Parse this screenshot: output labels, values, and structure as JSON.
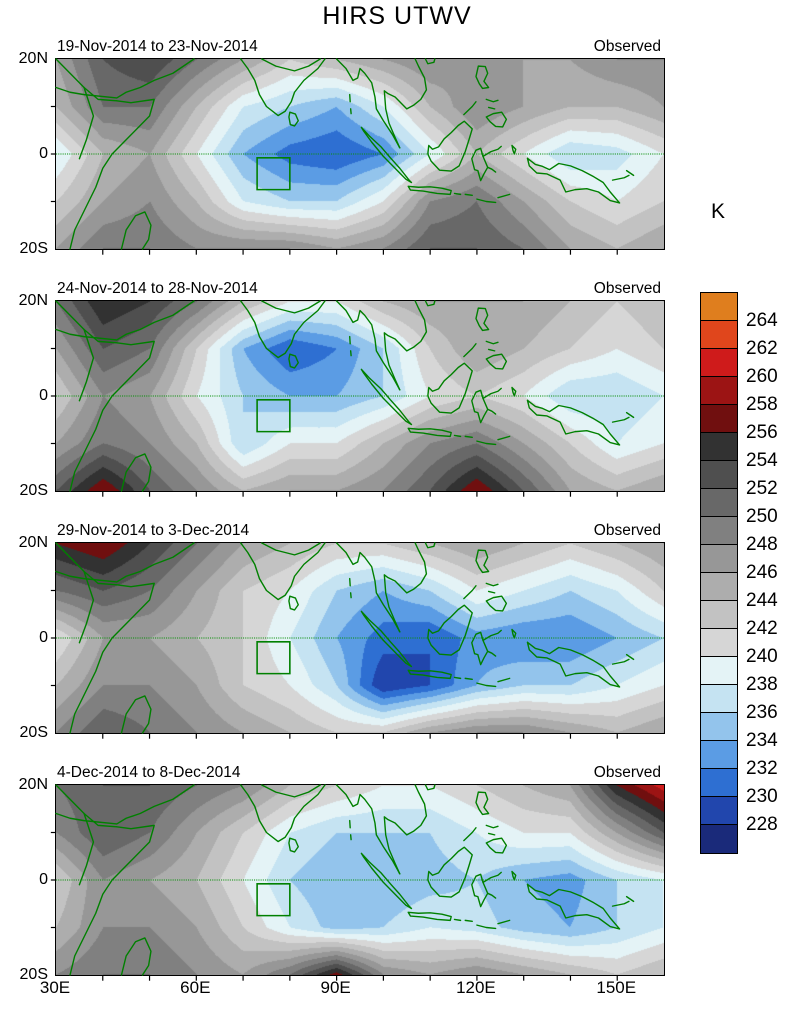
{
  "title": "HIRS UTWV",
  "chart_data": {
    "type": "heatmap",
    "title": "HIRS UTWV",
    "unit": "K",
    "lon_range": [
      30,
      160
    ],
    "lat_range": [
      -20,
      20
    ],
    "x": {
      "ticks": [
        30,
        60,
        90,
        120,
        150
      ],
      "tick_labels": [
        "30E",
        "60E",
        "90E",
        "120E",
        "150E"
      ]
    },
    "y": {
      "tick_labels": [
        "20N",
        "0",
        "20S"
      ]
    },
    "grid_lons": [
      30,
      40,
      50,
      60,
      70,
      80,
      90,
      100,
      110,
      120,
      130,
      140,
      150,
      160
    ],
    "grid_lats": [
      20,
      10,
      0,
      -10,
      -20
    ],
    "levels": [
      228,
      230,
      232,
      234,
      236,
      238,
      240,
      242,
      244,
      246,
      248,
      250,
      252,
      254,
      256,
      258,
      260,
      262,
      264
    ],
    "colors": [
      "#1a2a7a",
      "#2146ad",
      "#2e6fd2",
      "#5b9ce4",
      "#93c4ec",
      "#c5e3f2",
      "#e4f3f6",
      "#d6d6d6",
      "#c2c2c2",
      "#adadad",
      "#979797",
      "#808080",
      "#686868",
      "#4f4f4f",
      "#323232",
      "#700f0f",
      "#9c1414",
      "#cf1b1b",
      "#e0461c",
      "#df7e1e"
    ],
    "colorbar_tick_labels": [
      "264",
      "262",
      "260",
      "258",
      "256",
      "254",
      "252",
      "250",
      "248",
      "246",
      "244",
      "242",
      "240",
      "238",
      "236",
      "234",
      "232",
      "230",
      "228"
    ],
    "highlight_box": {
      "lon_min": 73,
      "lon_max": 80,
      "lat_min": -7.5,
      "lat_max": -0.8
    },
    "panels": [
      {
        "date_label": "19-Nov-2014 to 23-Nov-2014",
        "source_label": "Observed",
        "values": [
          [
            246,
            252,
            254,
            250,
            246,
            242,
            244,
            246,
            248,
            246,
            246,
            246,
            248,
            248
          ],
          [
            244,
            250,
            250,
            244,
            238,
            236,
            234,
            238,
            244,
            248,
            246,
            244,
            244,
            246
          ],
          [
            238,
            244,
            246,
            240,
            234,
            231,
            230,
            232,
            238,
            244,
            240,
            236,
            237,
            240
          ],
          [
            242,
            246,
            248,
            244,
            238,
            236,
            236,
            240,
            248,
            250,
            246,
            242,
            240,
            242
          ],
          [
            246,
            250,
            250,
            248,
            248,
            248,
            246,
            248,
            252,
            252,
            250,
            246,
            244,
            246
          ]
        ]
      },
      {
        "date_label": "24-Nov-2014 to 28-Nov-2014",
        "source_label": "Observed",
        "values": [
          [
            250,
            256,
            254,
            250,
            244,
            240,
            240,
            244,
            246,
            246,
            246,
            244,
            242,
            244
          ],
          [
            246,
            252,
            250,
            242,
            234,
            230,
            232,
            236,
            242,
            246,
            244,
            242,
            240,
            242
          ],
          [
            242,
            248,
            246,
            240,
            236,
            234,
            234,
            236,
            240,
            242,
            240,
            236,
            236,
            238
          ],
          [
            246,
            250,
            248,
            244,
            236,
            240,
            240,
            244,
            248,
            250,
            246,
            242,
            238,
            240
          ],
          [
            252,
            258,
            252,
            248,
            244,
            246,
            246,
            248,
            252,
            258,
            252,
            246,
            244,
            246
          ]
        ]
      },
      {
        "date_label": "29-Nov-2014 to 3-Dec-2014",
        "source_label": "Observed",
        "values": [
          [
            256,
            258,
            254,
            250,
            246,
            244,
            242,
            242,
            244,
            246,
            244,
            242,
            244,
            246
          ],
          [
            250,
            252,
            250,
            246,
            242,
            240,
            236,
            234,
            236,
            240,
            238,
            236,
            238,
            242
          ],
          [
            240,
            246,
            246,
            244,
            242,
            238,
            234,
            231,
            230,
            233,
            232,
            232,
            234,
            236
          ],
          [
            244,
            248,
            248,
            246,
            242,
            240,
            236,
            228,
            230,
            234,
            236,
            236,
            238,
            240
          ],
          [
            248,
            252,
            250,
            248,
            246,
            244,
            242,
            242,
            246,
            248,
            248,
            246,
            244,
            246
          ]
        ]
      },
      {
        "date_label": "4-Dec-2014 to 8-Dec-2014",
        "source_label": "Observed",
        "values": [
          [
            250,
            252,
            252,
            250,
            248,
            244,
            242,
            240,
            240,
            242,
            244,
            246,
            256,
            261
          ],
          [
            248,
            252,
            250,
            246,
            242,
            238,
            236,
            236,
            236,
            238,
            240,
            240,
            246,
            252
          ],
          [
            242,
            248,
            246,
            244,
            240,
            236,
            234,
            234,
            235,
            236,
            234,
            233,
            236,
            238
          ],
          [
            244,
            248,
            248,
            246,
            242,
            238,
            235,
            236,
            238,
            237,
            235,
            234,
            236,
            238
          ],
          [
            248,
            250,
            250,
            248,
            246,
            250,
            257,
            248,
            246,
            248,
            246,
            244,
            242,
            244
          ]
        ]
      }
    ]
  }
}
